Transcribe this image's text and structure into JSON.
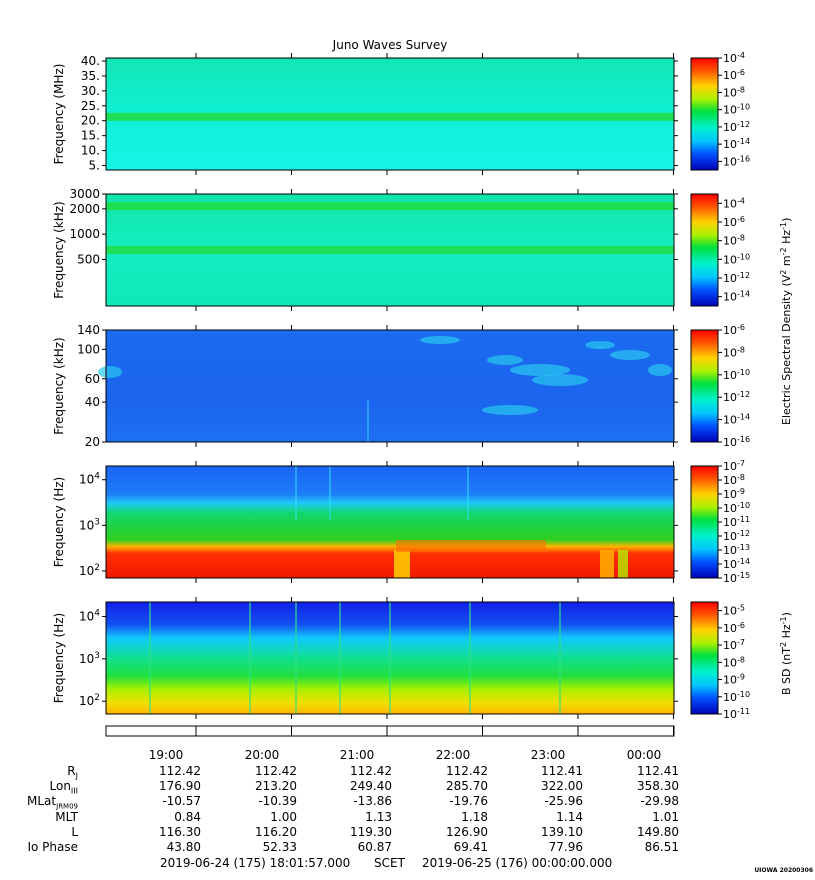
{
  "chart_data": [
    {
      "type": "heatmap",
      "title": "Juno Waves Survey",
      "ylabel": "Frequency (MHz)",
      "yscale": "linear",
      "ylim": [
        3.5,
        41
      ],
      "yticks": [
        "5.",
        "10.",
        "15.",
        "20.",
        "25.",
        "30.",
        "35.",
        "40."
      ],
      "ytick_values": [
        5,
        10,
        15,
        20,
        25,
        30,
        35,
        40
      ],
      "colorbar": {
        "ticks": [
          "10-4",
          "10-6",
          "10-8",
          "10-10",
          "10-12",
          "10-14",
          "10-16"
        ],
        "range_exp": [
          -4,
          -17
        ]
      },
      "features": [
        {
          "band_center": 21.3,
          "description": "green narrow band"
        }
      ]
    },
    {
      "type": "heatmap",
      "ylabel": "Frequency (kHz)",
      "yscale": "log",
      "ylim": [
        140,
        3000
      ],
      "yticks": [
        "3000",
        "2000",
        "1000",
        "500"
      ],
      "ytick_values": [
        3000,
        2000,
        1000,
        500
      ],
      "colorbar": {
        "ticks": [
          "10-4",
          "10-6",
          "10-8",
          "10-10",
          "10-12",
          "10-14"
        ],
        "range_exp": [
          -3,
          -15
        ]
      },
      "features": [
        {
          "band_center": 2150
        },
        {
          "band_center": 650
        }
      ]
    },
    {
      "type": "heatmap",
      "ylabel": "Frequency (kHz)",
      "yscale": "log",
      "ylim": [
        20,
        140
      ],
      "yticks": [
        "140",
        "100",
        "60",
        "40",
        "20"
      ],
      "ytick_values": [
        140,
        100,
        60,
        40,
        20
      ],
      "colorbar": {
        "ticks": [
          "10-6",
          "10-8",
          "10-10",
          "10-12",
          "10-14",
          "10-16"
        ],
        "range_exp": [
          -6,
          -16
        ]
      }
    },
    {
      "type": "heatmap",
      "ylabel": "Frequency (Hz)",
      "yscale": "log",
      "ylim": [
        70,
        20000
      ],
      "yticks": [
        "10^4",
        "10^3",
        "10^2"
      ],
      "ytick_values": [
        10000,
        1000,
        100
      ],
      "colorbar": {
        "ticks": [
          "10-7",
          "10-8",
          "10-9",
          "10-10",
          "10-11",
          "10-12",
          "10-13",
          "10-14",
          "10-15"
        ],
        "range_exp": [
          -7,
          -15
        ]
      }
    },
    {
      "type": "heatmap",
      "ylabel": "Frequency (Hz)",
      "yscale": "log",
      "ylim": [
        50,
        22000
      ],
      "yticks": [
        "10^4",
        "10^3",
        "10^2"
      ],
      "ytick_values": [
        10000,
        1000,
        100
      ],
      "colorbar": {
        "ticks": [
          "10-5",
          "10-6",
          "10-7",
          "10-8",
          "10-9",
          "10-10",
          "10-11"
        ],
        "range_exp": [
          -4.5,
          -11
        ]
      }
    }
  ],
  "colorbar_labels": {
    "electric": "Electric Spectral Density (V2 m-2 Hz-1)",
    "magnetic": "B SD (nT2 Hz-1)"
  },
  "time_axis": {
    "ticks": [
      "19:00",
      "20:00",
      "21:00",
      "22:00",
      "23:00",
      "00:00"
    ]
  },
  "ephemeris": [
    {
      "label": "Rj",
      "values": [
        "112.42",
        "112.42",
        "112.42",
        "112.42",
        "112.41",
        "112.41"
      ]
    },
    {
      "label": "LonIII",
      "values": [
        "176.90",
        "213.20",
        "249.40",
        "285.70",
        "322.00",
        "358.30"
      ]
    },
    {
      "label": "MLatJRM09",
      "values": [
        "-10.57",
        "-10.39",
        "-13.86",
        "-19.76",
        "-25.96",
        "-29.98"
      ]
    },
    {
      "label": "MLT",
      "values": [
        "0.84",
        "1.00",
        "1.13",
        "1.18",
        "1.14",
        "1.01"
      ]
    },
    {
      "label": "L",
      "values": [
        "116.30",
        "116.20",
        "119.30",
        "126.90",
        "139.10",
        "149.80"
      ]
    },
    {
      "label": "Io Phase",
      "values": [
        "43.80",
        "52.33",
        "60.87",
        "69.41",
        "77.96",
        "86.51"
      ]
    }
  ],
  "footer": {
    "start": "2019-06-24 (175) 18:01:57.000",
    "mid": "SCET",
    "end": "2019-06-25 (176) 00:00:00.000",
    "stamp": "UIOWA 20200306"
  }
}
